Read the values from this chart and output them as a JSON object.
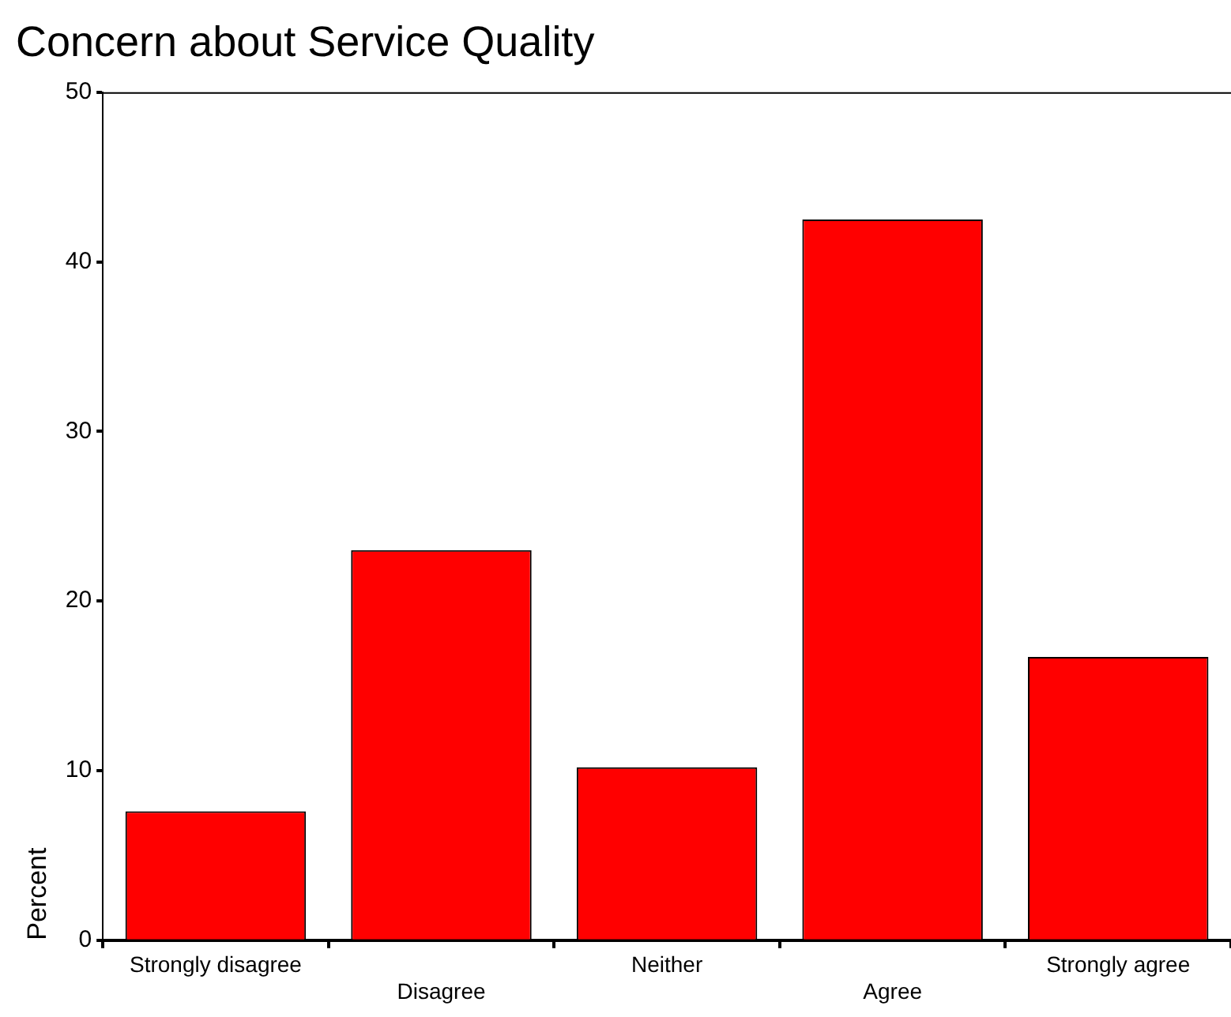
{
  "chart_data": {
    "type": "bar",
    "title": "Concern about Service Quality",
    "ylabel": "Percent",
    "categories": [
      "Strongly disagree",
      "Disagree",
      "Neither",
      "Agree",
      "Strongly agree"
    ],
    "values": [
      7.6,
      23.0,
      10.2,
      42.5,
      16.7
    ],
    "color": "#ff0000",
    "ylim": [
      0,
      50
    ],
    "yticks": [
      0,
      10,
      20,
      30,
      40,
      50
    ],
    "grid": false,
    "legend": false
  }
}
